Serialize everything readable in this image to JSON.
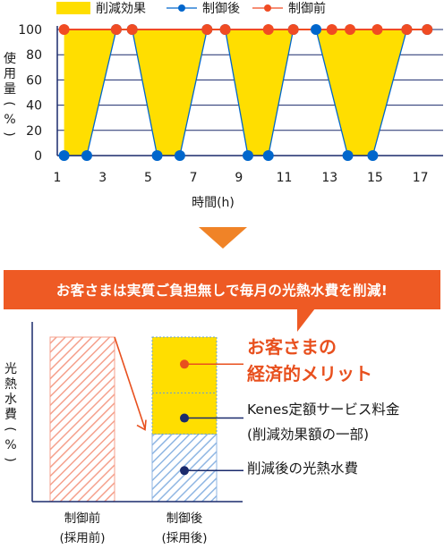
{
  "chart_data": [
    {
      "type": "line",
      "legend": {
        "items": [
          {
            "label": "削減効果",
            "color": "#ffde00",
            "kind": "area"
          },
          {
            "label": "制御後",
            "color": "#0066cc",
            "kind": "line-marker"
          },
          {
            "label": "制御前",
            "color": "#f04b23",
            "kind": "line-marker"
          }
        ],
        "position": "top"
      },
      "ylabel": "使用量(%)",
      "xlabel": "時間(h)",
      "ylim": [
        0,
        100
      ],
      "xlim": [
        1,
        18
      ],
      "y_ticks": [
        0,
        20,
        40,
        60,
        80,
        100
      ],
      "x_ticks": [
        1,
        3,
        5,
        7,
        9,
        11,
        13,
        15,
        17
      ],
      "grid": true,
      "series": [
        {
          "name": "制御前",
          "color": "#f04b23",
          "x": [
            1.3,
            3.6,
            4.3,
            7.6,
            8.4,
            10.3,
            11.4,
            13.1,
            13.9,
            15.1,
            16.4,
            17.3
          ],
          "y": [
            100,
            100,
            100,
            100,
            100,
            100,
            100,
            100,
            100,
            100,
            100,
            100
          ]
        },
        {
          "name": "制御後",
          "color": "#0066cc",
          "x": [
            1.3,
            2.3,
            3.6,
            4.3,
            5.4,
            6.4,
            7.6,
            8.4,
            9.4,
            10.3,
            11.4,
            12.4,
            13.8,
            14.9,
            16.4,
            17.3
          ],
          "y": [
            0,
            0,
            100,
            100,
            0,
            0,
            100,
            100,
            0,
            0,
            100,
            100,
            0,
            0,
            100,
            100
          ]
        }
      ]
    },
    {
      "type": "bar",
      "ylabel": "光熱水費(%)",
      "categories": [
        "制御前\n(採用前)",
        "制御後\n(採用後)"
      ],
      "category_lines": [
        [
          "制御前",
          "(採用前)"
        ],
        [
          "制御後",
          "(採用後)"
        ]
      ],
      "bars": [
        {
          "category": "制御前",
          "stack": [
            {
              "label": "光熱水費",
              "value": 100,
              "color": "#f5a08c",
              "pattern": "hatch"
            }
          ]
        },
        {
          "category": "制御後",
          "stack": [
            {
              "label": "削減後の光熱水費",
              "value": 41,
              "color": "#8fb6e3",
              "pattern": "hatch"
            },
            {
              "label": "Kenes定額サービス料金",
              "value": 25,
              "color": "#ffde00",
              "pattern": "solid"
            },
            {
              "label": "お客さまの経済的メリット",
              "value": 34,
              "color": "#ffde00",
              "pattern": "solid"
            }
          ]
        }
      ]
    }
  ],
  "banner": {
    "text": "お客さまは実質ご負担無しで毎月の光熱水費を削減!"
  },
  "annotations": {
    "benefit": [
      "お客さまの",
      "経済的メリット"
    ],
    "fee": [
      "Kenes定額サービス料金",
      "(削減効果額の一部)"
    ],
    "savings": "削減後の光熱水費"
  },
  "colors": {
    "accent": "#ee5a24",
    "orange_arrow": "#f08327",
    "navy": "#1a2a6c",
    "yellow": "#ffde00"
  }
}
